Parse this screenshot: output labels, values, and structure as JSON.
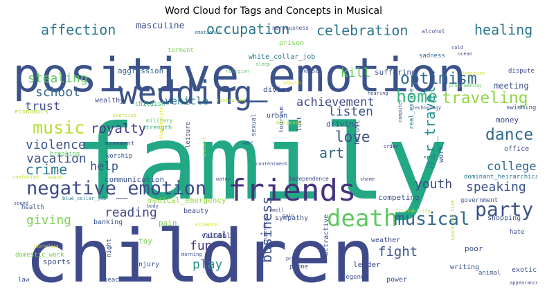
{
  "title": "Word Cloud for Tags and Concepts in Musical",
  "words": [
    {
      "text": "family",
      "color": "#22a884"
    },
    {
      "text": "children",
      "color": "#3e4a89"
    },
    {
      "text": "positive_emotion",
      "color": "#3b528b"
    },
    {
      "text": "wedding",
      "color": "#3b528b"
    },
    {
      "text": "friends",
      "color": "#46337e"
    },
    {
      "text": "negative_emotion",
      "color": "#3e4a89"
    },
    {
      "text": "death",
      "color": "#5ec962"
    },
    {
      "text": "musical",
      "color": "#31688e"
    },
    {
      "text": "party",
      "color": "#3b528b"
    },
    {
      "text": "home",
      "color": "#35b779"
    },
    {
      "text": "traveling",
      "color": "#90d743"
    },
    {
      "text": "music",
      "color": "#b5de2b"
    },
    {
      "text": "optimism",
      "color": "#31688e"
    },
    {
      "text": "celebration",
      "color": "#2a788e"
    },
    {
      "text": "occupation",
      "color": "#2a788e"
    },
    {
      "text": "affection",
      "color": "#2a788e"
    },
    {
      "text": "healing",
      "color": "#2a788e"
    },
    {
      "text": "love",
      "color": "#3b528b"
    },
    {
      "text": "dance",
      "color": "#31688e"
    },
    {
      "text": "royalty",
      "color": "#443983"
    },
    {
      "text": "violence",
      "color": "#3b528b"
    },
    {
      "text": "crime",
      "color": "#2a788e"
    },
    {
      "text": "vacation",
      "color": "#3b528b"
    },
    {
      "text": "school",
      "color": "#31688e"
    },
    {
      "text": "trust",
      "color": "#3e4a89"
    },
    {
      "text": "stealing",
      "color": "#5ec962"
    },
    {
      "text": "kill",
      "color": "#5ec962"
    },
    {
      "text": "listen",
      "color": "#3b528b"
    },
    {
      "text": "achievement",
      "color": "#3e4a89"
    },
    {
      "text": "speaking",
      "color": "#3b528b"
    },
    {
      "text": "college",
      "color": "#31688e"
    },
    {
      "text": "youth",
      "color": "#3e4a89"
    },
    {
      "text": "art",
      "color": "#31688e"
    },
    {
      "text": "help",
      "color": "#3b528b"
    },
    {
      "text": "reading",
      "color": "#3e4a89"
    },
    {
      "text": "giving",
      "color": "#7ad151"
    },
    {
      "text": "fun",
      "color": "#46337e"
    },
    {
      "text": "play",
      "color": "#21918c"
    },
    {
      "text": "fight",
      "color": "#3b528b"
    },
    {
      "text": "business",
      "color": "#3b528b"
    },
    {
      "text": "air_travel",
      "color": "#21918c"
    },
    {
      "text": "vehicle",
      "color": "#2a788e"
    },
    {
      "text": "masculine",
      "color": "#3b528b"
    },
    {
      "text": "emotional",
      "color": "#2a788e"
    },
    {
      "text": "nervousness",
      "color": "#3e4a89"
    },
    {
      "text": "alcohol",
      "color": "#3e4a89"
    },
    {
      "text": "prison",
      "color": "#7ad151"
    },
    {
      "text": "torment",
      "color": "#7ad151"
    },
    {
      "text": "white_collar_job",
      "color": "#2a788e"
    },
    {
      "text": "sleep",
      "color": "#5ec962"
    },
    {
      "text": "sadness",
      "color": "#31688e"
    },
    {
      "text": "cold",
      "color": "#3e4a89"
    },
    {
      "text": "ocean",
      "color": "#3e4a89"
    },
    {
      "text": "aggression",
      "color": "#31688e"
    },
    {
      "text": "religion",
      "color": "#5ec962"
    },
    {
      "text": "noise",
      "color": "#3e4a89"
    },
    {
      "text": "suffering",
      "color": "#3b528b"
    },
    {
      "text": "dispute",
      "color": "#3e4a89"
    },
    {
      "text": "feminine",
      "color": "#dae319"
    },
    {
      "text": "meeting",
      "color": "#3b528b"
    },
    {
      "text": "programming",
      "color": "#5ec962"
    },
    {
      "text": "divine",
      "color": "#3b528b"
    },
    {
      "text": "search",
      "color": "#dae319"
    },
    {
      "text": "hearing",
      "color": "#3e4a89"
    },
    {
      "text": "swimming",
      "color": "#3b528b"
    },
    {
      "text": "wealthy",
      "color": "#3e4a89"
    },
    {
      "text": "childish",
      "color": "#35b779"
    },
    {
      "text": "restaurant",
      "color": "#b5de2b"
    },
    {
      "text": "economics",
      "color": "#b5de2b"
    },
    {
      "text": "technology",
      "color": "#3e4a89"
    },
    {
      "text": "urban",
      "color": "#3b528b"
    },
    {
      "text": "exercise",
      "color": "#b5de2b"
    },
    {
      "text": "medieval",
      "color": "#b5de2b"
    },
    {
      "text": "military",
      "color": "#5ec962"
    },
    {
      "text": "strength",
      "color": "#35b779"
    },
    {
      "text": "driving",
      "color": "#3b528b"
    },
    {
      "text": "money",
      "color": "#3e4a89"
    },
    {
      "text": "movement",
      "color": "#3e4a89"
    },
    {
      "text": "flexibility",
      "color": "#dae319"
    },
    {
      "text": "war",
      "color": "#3e4a89"
    },
    {
      "text": "sexual",
      "color": "#3b528b"
    },
    {
      "text": "tourism",
      "color": "#3b528b"
    },
    {
      "text": "lust",
      "color": "#3e4a89"
    },
    {
      "text": "computer",
      "color": "#3e4a89"
    },
    {
      "text": "real_estate",
      "color": "#2a788e"
    },
    {
      "text": "order",
      "color": "#3e4a89"
    },
    {
      "text": "heroic",
      "color": "#3b528b"
    },
    {
      "text": "breaking",
      "color": "#5ec962"
    },
    {
      "text": "worship",
      "color": "#3b528b"
    },
    {
      "text": "ancient",
      "color": "#b5de2b"
    },
    {
      "text": "leisure",
      "color": "#3e4a89"
    },
    {
      "text": "contentment",
      "color": "#3e4a89"
    },
    {
      "text": "office",
      "color": "#3b528b"
    },
    {
      "text": "work",
      "color": "#3b528b"
    },
    {
      "text": "dominant_heirarchical",
      "color": "#2a788e"
    },
    {
      "text": "confusion",
      "color": "#b5de2b"
    },
    {
      "text": "weapon",
      "color": "#b5de2b"
    },
    {
      "text": "communication",
      "color": "#3b528b"
    },
    {
      "text": "water",
      "color": "#3e4a89"
    },
    {
      "text": "independence",
      "color": "#3e4a89"
    },
    {
      "text": "shame",
      "color": "#3e4a89"
    },
    {
      "text": "government",
      "color": "#3b528b"
    },
    {
      "text": "sound",
      "color": "#3e4a89"
    },
    {
      "text": "blue_collar_job",
      "color": "#2a788e"
    },
    {
      "text": "medical_emergency",
      "color": "#90d743"
    },
    {
      "text": "competing",
      "color": "#3b528b"
    },
    {
      "text": "health",
      "color": "#3b528b"
    },
    {
      "text": "body",
      "color": "#3e4a89"
    },
    {
      "text": "smell",
      "color": "#3e4a89"
    },
    {
      "text": "gain",
      "color": "#3e4a89"
    },
    {
      "text": "irritability",
      "color": "#b5de2b"
    },
    {
      "text": "shopping",
      "color": "#3b528b"
    },
    {
      "text": "beauty",
      "color": "#3e4a89"
    },
    {
      "text": "banking",
      "color": "#3b528b"
    },
    {
      "text": "pain",
      "color": "#7ad151"
    },
    {
      "text": "science",
      "color": "#dae319"
    },
    {
      "text": "sympathy",
      "color": "#3b528b"
    },
    {
      "text": "hate",
      "color": "#3b528b"
    },
    {
      "text": "rural",
      "color": "#3b528b"
    },
    {
      "text": "toy",
      "color": "#7ad151"
    },
    {
      "text": "valuable",
      "color": "#3e4a89"
    },
    {
      "text": "journalism",
      "color": "#dae319"
    },
    {
      "text": "superhero",
      "color": "#3e4a89"
    },
    {
      "text": "domestic_work",
      "color": "#7ad151"
    },
    {
      "text": "night",
      "color": "#3b528b"
    },
    {
      "text": "morning",
      "color": "#3b528b"
    },
    {
      "text": "weather",
      "color": "#3e4a89"
    },
    {
      "text": "poor",
      "color": "#3b528b"
    },
    {
      "text": "sports",
      "color": "#3b528b"
    },
    {
      "text": "injury",
      "color": "#3b528b"
    },
    {
      "text": "phone",
      "color": "#3b528b"
    },
    {
      "text": "pride",
      "color": "#3e4a89"
    },
    {
      "text": "attractive",
      "color": "#3b528b"
    },
    {
      "text": "leader",
      "color": "#3e4a89"
    },
    {
      "text": "space_and_time",
      "color": "#b5de2b"
    },
    {
      "text": "writing",
      "color": "#3b528b"
    },
    {
      "text": "exotic",
      "color": "#3b528b"
    },
    {
      "text": "animal",
      "color": "#3b528b"
    },
    {
      "text": "legend",
      "color": "#3b528b"
    },
    {
      "text": "power",
      "color": "#3b528b"
    },
    {
      "text": "appearance",
      "color": "#3e4a89"
    },
    {
      "text": "law",
      "color": "#3b528b"
    },
    {
      "text": "beach",
      "color": "#3b528b"
    }
  ]
}
